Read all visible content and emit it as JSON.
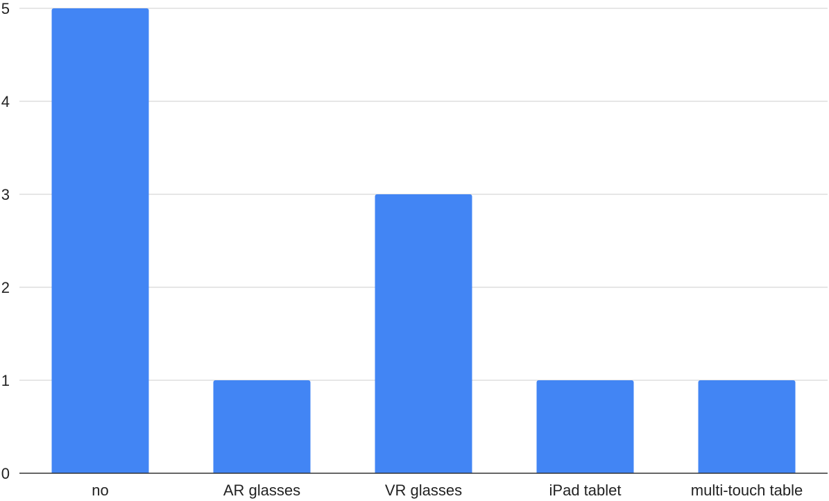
{
  "chart_data": {
    "type": "bar",
    "categories": [
      "no",
      "AR glasses",
      "VR glasses",
      "iPad tablet",
      "multi-touch table"
    ],
    "values": [
      5,
      1,
      3,
      1,
      1
    ],
    "ylim": [
      0,
      5
    ],
    "yticks": [
      "0",
      "1",
      "2",
      "3",
      "4",
      "5"
    ],
    "grid": true,
    "legend": "none",
    "colors": {
      "bar": "#4285f4",
      "grid": "#cccccc",
      "axis": "#333333",
      "text": "#222222"
    }
  }
}
